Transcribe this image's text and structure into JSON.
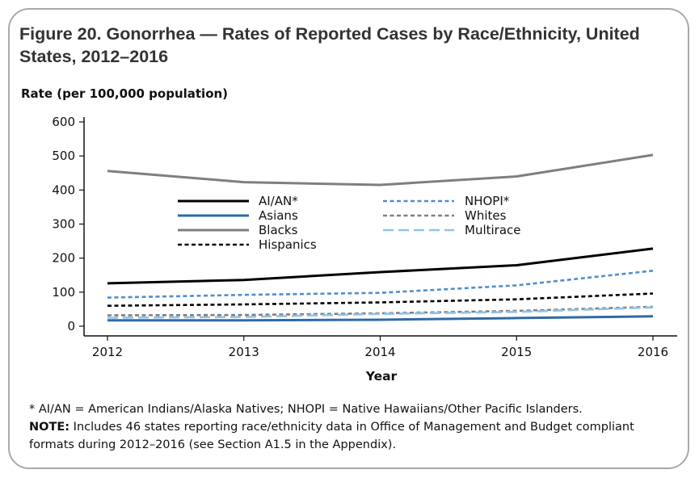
{
  "title": "Figure 20. Gonorrhea — Rates of Reported Cases by Race/Ethnicity, United States, 2012–2016",
  "footnotes": {
    "definition": "* AI/AN = American Indians/Alaska Natives; NHOPI = Native Hawaiians/Other Pacific Islanders.",
    "note_label": "NOTE:",
    "note_text": " Includes 46 states reporting race/ethnicity data in Office of Management and Budget compliant formats during 2012–2016 (see Section A1.5 in the Appendix)."
  },
  "chart_data": {
    "type": "line",
    "title": "Figure 20. Gonorrhea — Rates of Reported Cases by Race/Ethnicity, United States, 2012–2016",
    "xlabel": "Year",
    "ylabel": "Rate (per 100,000 population)",
    "x": [
      "2012",
      "2013",
      "2014",
      "2015",
      "2016"
    ],
    "ylim": [
      0,
      600
    ],
    "yticks": [
      0,
      100,
      200,
      300,
      400,
      500,
      600
    ],
    "grid": false,
    "legend_position": "center-left",
    "series": [
      {
        "name": "AI/AN*",
        "values": [
          126,
          136,
          159,
          179,
          228
        ],
        "color": "#000000",
        "style": "solid"
      },
      {
        "name": "Asians",
        "values": [
          17,
          17,
          19,
          24,
          29
        ],
        "color": "#2e6aa6",
        "style": "solid"
      },
      {
        "name": "Blacks",
        "values": [
          456,
          423,
          415,
          440,
          503
        ],
        "color": "#7f7f7f",
        "style": "solid"
      },
      {
        "name": "Hispanics",
        "values": [
          60,
          64,
          70,
          79,
          96
        ],
        "color": "#000000",
        "style": "dotted"
      },
      {
        "name": "NHOPI*",
        "values": [
          84,
          92,
          98,
          120,
          163
        ],
        "color": "#4f8fcd",
        "style": "dotted"
      },
      {
        "name": "Whites",
        "values": [
          32,
          33,
          38,
          45,
          57
        ],
        "color": "#7f7f7f",
        "style": "dotted"
      },
      {
        "name": "Multirace",
        "values": [
          25,
          27,
          36,
          42,
          55
        ],
        "color": "#8fc3e8",
        "style": "dashed"
      }
    ]
  }
}
